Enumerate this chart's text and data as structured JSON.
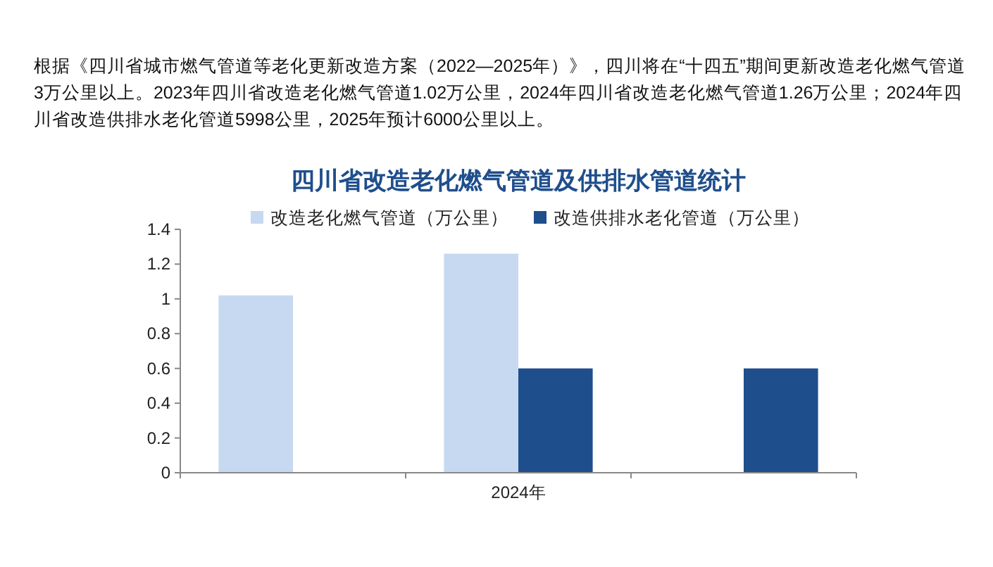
{
  "chart_data": {
    "type": "bar",
    "title": "四川省改造老化燃气管道及供排水管道统计",
    "annotations": [
      "根据《四川省城市燃气管道等老化更新改造方案（2022—2025年）》，四川将在“十四五”期间更新改造老化燃气管道3万公里以上。2023年四川省改造老化燃气管道1.02万公里，2024年四川省改造老化燃气管道1.26万公里；2024年四川省改造供排水老化管道5998公里，2025年预计6000公里以上。"
    ],
    "categories": [
      null,
      "2024年",
      null
    ],
    "series": [
      {
        "name": "改造老化燃气管道（万公里）",
        "color": "#c6d9f1",
        "values": [
          1.02,
          1.26,
          0
        ]
      },
      {
        "name": "改造供排水老化管道（万公里）",
        "color": "#1f4e8c",
        "values": [
          0,
          0.6,
          0.6
        ]
      }
    ],
    "ylim": [
      0,
      1.4
    ],
    "yticks": [
      0,
      0.2,
      0.4,
      0.6,
      0.8,
      1,
      1.2,
      1.4
    ],
    "grid": false,
    "legend": "top"
  }
}
